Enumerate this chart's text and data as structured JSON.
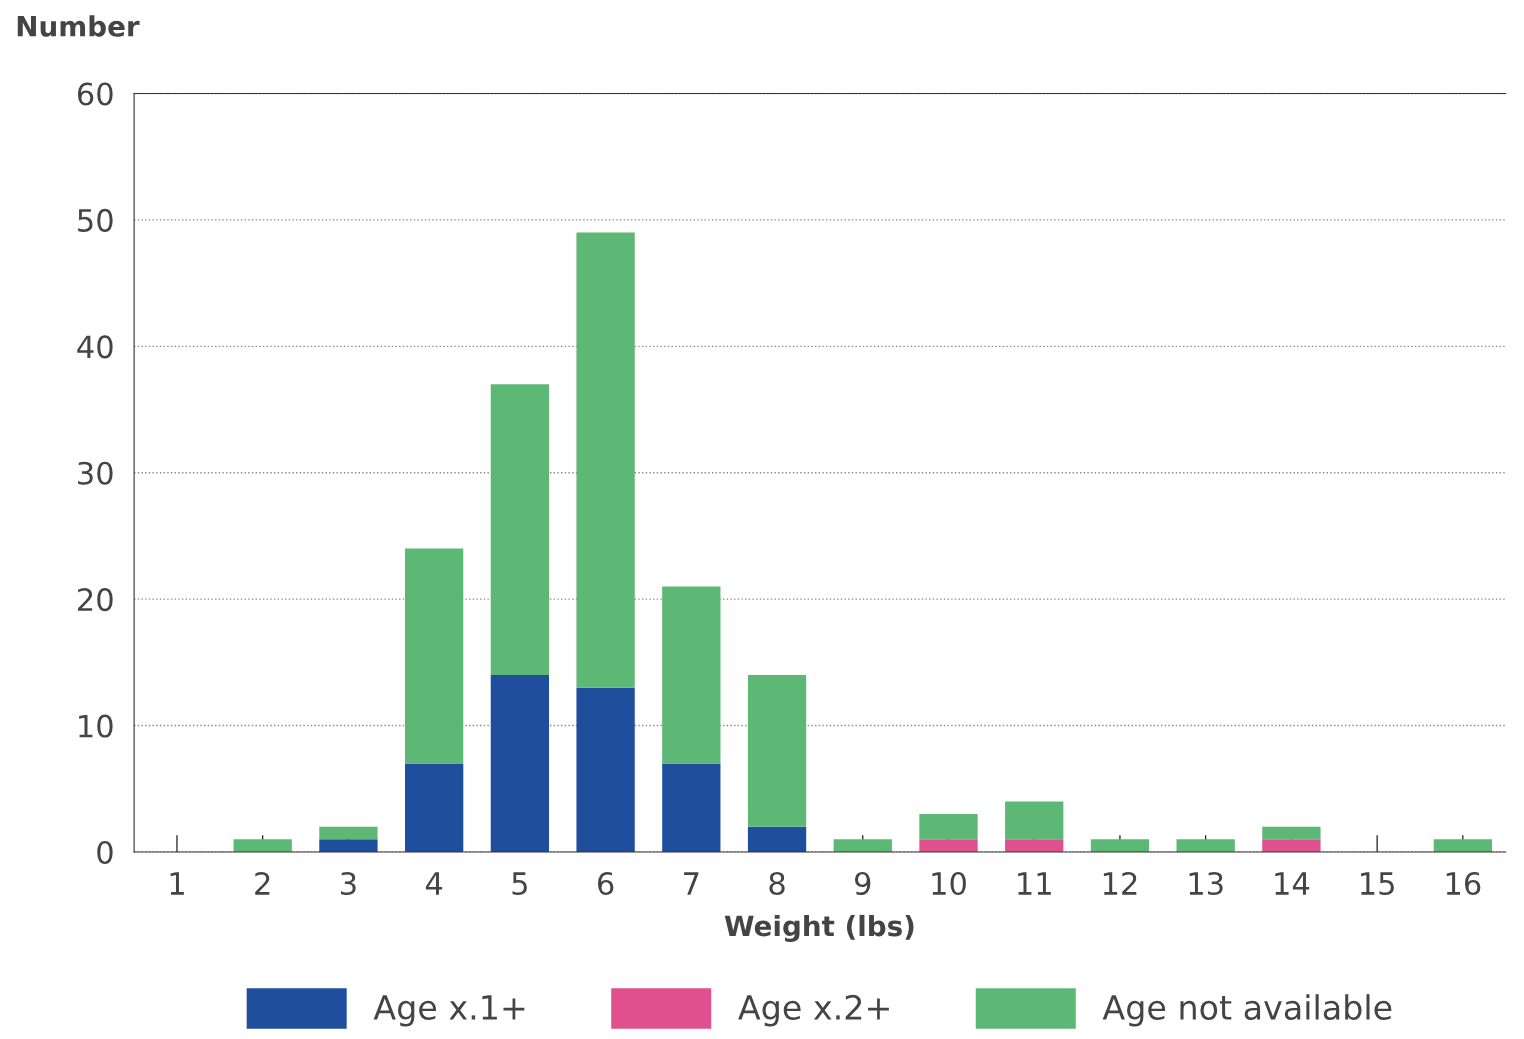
{
  "chart_data": {
    "type": "bar",
    "stacked": true,
    "xlabel": "Weight (lbs)",
    "ylabel": "Number",
    "categories": [
      "1",
      "2",
      "3",
      "4",
      "5",
      "6",
      "7",
      "8",
      "9",
      "10",
      "11",
      "12",
      "13",
      "14",
      "15",
      "16"
    ],
    "series": [
      {
        "name": "Age x.1+",
        "color": "#1f4e9c",
        "values": [
          0,
          0,
          1,
          7,
          14,
          13,
          7,
          2,
          0,
          0,
          0,
          0,
          0,
          0,
          0,
          0
        ]
      },
      {
        "name": "Age x.2+",
        "color": "#e0508f",
        "values": [
          0,
          0,
          0,
          0,
          0,
          0,
          0,
          0,
          0,
          1,
          1,
          0,
          0,
          1,
          0,
          0
        ]
      },
      {
        "name": "Age not available",
        "color": "#5cb874",
        "values": [
          0,
          1,
          1,
          17,
          23,
          36,
          14,
          12,
          1,
          2,
          3,
          1,
          1,
          1,
          0,
          1
        ]
      }
    ],
    "ylim": [
      0,
      60
    ],
    "yticks": [
      0,
      10,
      20,
      30,
      40,
      50,
      60
    ],
    "grid": "y",
    "legend": "bottom"
  }
}
